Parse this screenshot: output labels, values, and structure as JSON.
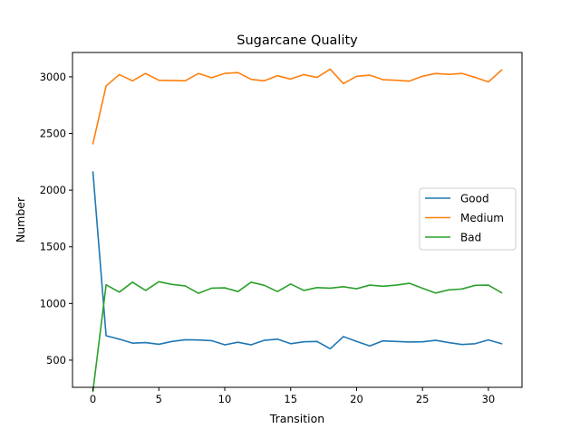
{
  "chart_data": {
    "type": "line",
    "title": "Sugarcane Quality",
    "xlabel": "Transition",
    "ylabel": "Number",
    "xlim": [
      -1.55,
      32.55
    ],
    "ylim": [
      260,
      3215
    ],
    "x_ticks": [
      0,
      5,
      10,
      15,
      20,
      25,
      30
    ],
    "y_ticks": [
      500,
      1000,
      1500,
      2000,
      2500,
      3000
    ],
    "grid": false,
    "legend_position": "center-right",
    "x": [
      0,
      1,
      2,
      3,
      4,
      5,
      6,
      7,
      8,
      9,
      10,
      11,
      12,
      13,
      14,
      15,
      16,
      17,
      18,
      19,
      20,
      21,
      22,
      23,
      24,
      25,
      26,
      27,
      28,
      29,
      30,
      31
    ],
    "series": [
      {
        "name": "Good",
        "color": "#1f77b4",
        "values": [
          2160,
          715,
          685,
          650,
          655,
          640,
          665,
          680,
          678,
          672,
          635,
          658,
          635,
          675,
          685,
          645,
          662,
          665,
          600,
          708,
          665,
          625,
          670,
          665,
          660,
          662,
          675,
          655,
          638,
          645,
          678,
          645
        ]
      },
      {
        "name": "Medium",
        "color": "#ff7f0e",
        "values": [
          2410,
          2920,
          3020,
          2965,
          3030,
          2970,
          2968,
          2965,
          3030,
          2992,
          3030,
          3038,
          2978,
          2965,
          3010,
          2980,
          3020,
          2995,
          3068,
          2940,
          3005,
          3015,
          2975,
          2970,
          2962,
          3005,
          3030,
          3022,
          3030,
          2995,
          2955,
          3060
        ]
      },
      {
        "name": "Bad",
        "color": "#2ca02c",
        "values": [
          225,
          1165,
          1100,
          1188,
          1115,
          1192,
          1168,
          1155,
          1090,
          1135,
          1138,
          1105,
          1188,
          1160,
          1105,
          1172,
          1115,
          1140,
          1135,
          1148,
          1130,
          1162,
          1152,
          1162,
          1178,
          1135,
          1092,
          1120,
          1128,
          1160,
          1162,
          1095
        ]
      }
    ]
  }
}
